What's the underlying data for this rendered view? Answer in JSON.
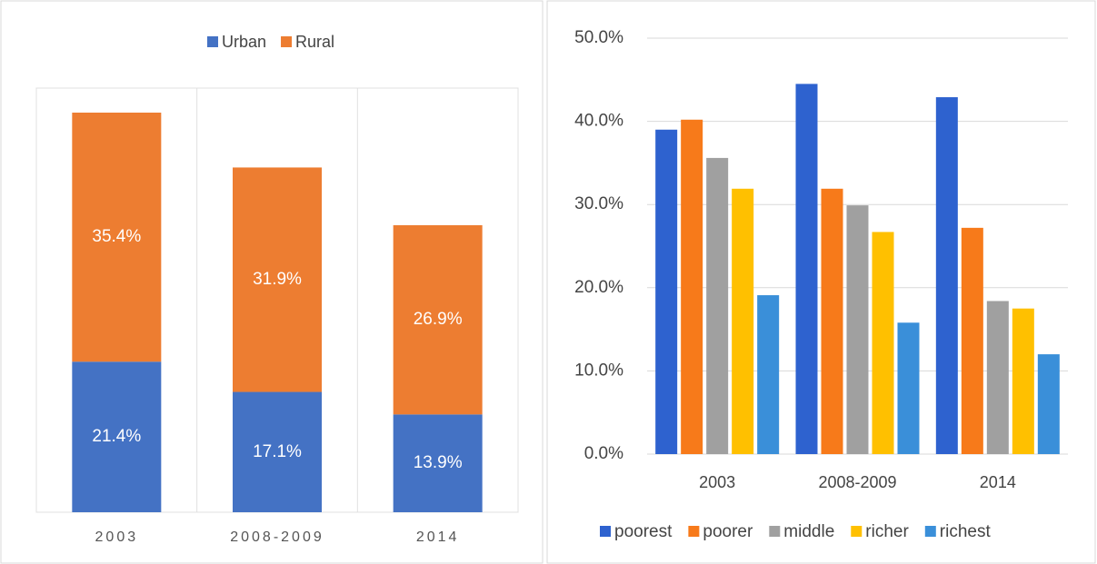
{
  "chart_data": [
    {
      "type": "bar",
      "stacked": true,
      "legend": "top",
      "categories": [
        "2003",
        "2008-2009",
        "2014"
      ],
      "series": [
        {
          "name": "Urban",
          "color": "#4472c4",
          "values": [
            21.4,
            17.1,
            13.9
          ],
          "value_labels": [
            "21.4%",
            "17.1%",
            "13.9%"
          ]
        },
        {
          "name": "Rural",
          "color": "#ed7d31",
          "values": [
            35.4,
            31.9,
            26.9
          ],
          "value_labels": [
            "35.4%",
            "31.9%",
            "26.9%"
          ]
        }
      ]
    },
    {
      "type": "bar",
      "stacked": false,
      "legend": "bottom",
      "grid": true,
      "categories": [
        "2003",
        "2008-2009",
        "2014"
      ],
      "ylim": [
        0,
        50
      ],
      "yticks": [
        {
          "value": 0,
          "label": "0.0%"
        },
        {
          "value": 10,
          "label": "10.0%"
        },
        {
          "value": 20,
          "label": "20.0%"
        },
        {
          "value": 30,
          "label": "30.0%"
        },
        {
          "value": 40,
          "label": "40.0%"
        },
        {
          "value": 50,
          "label": "50.0%"
        }
      ],
      "series": [
        {
          "name": "poorest",
          "color": "#2e62cf",
          "values": [
            39.0,
            44.5,
            42.9
          ]
        },
        {
          "name": "poorer",
          "color": "#f77a1a",
          "values": [
            40.2,
            31.9,
            27.2
          ]
        },
        {
          "name": "middle",
          "color": "#a0a0a0",
          "values": [
            35.6,
            29.9,
            18.4
          ]
        },
        {
          "name": "richer",
          "color": "#ffc000",
          "values": [
            31.9,
            26.7,
            17.5
          ]
        },
        {
          "name": "richest",
          "color": "#3a8fd9",
          "values": [
            19.1,
            15.8,
            12.0
          ]
        }
      ]
    }
  ]
}
